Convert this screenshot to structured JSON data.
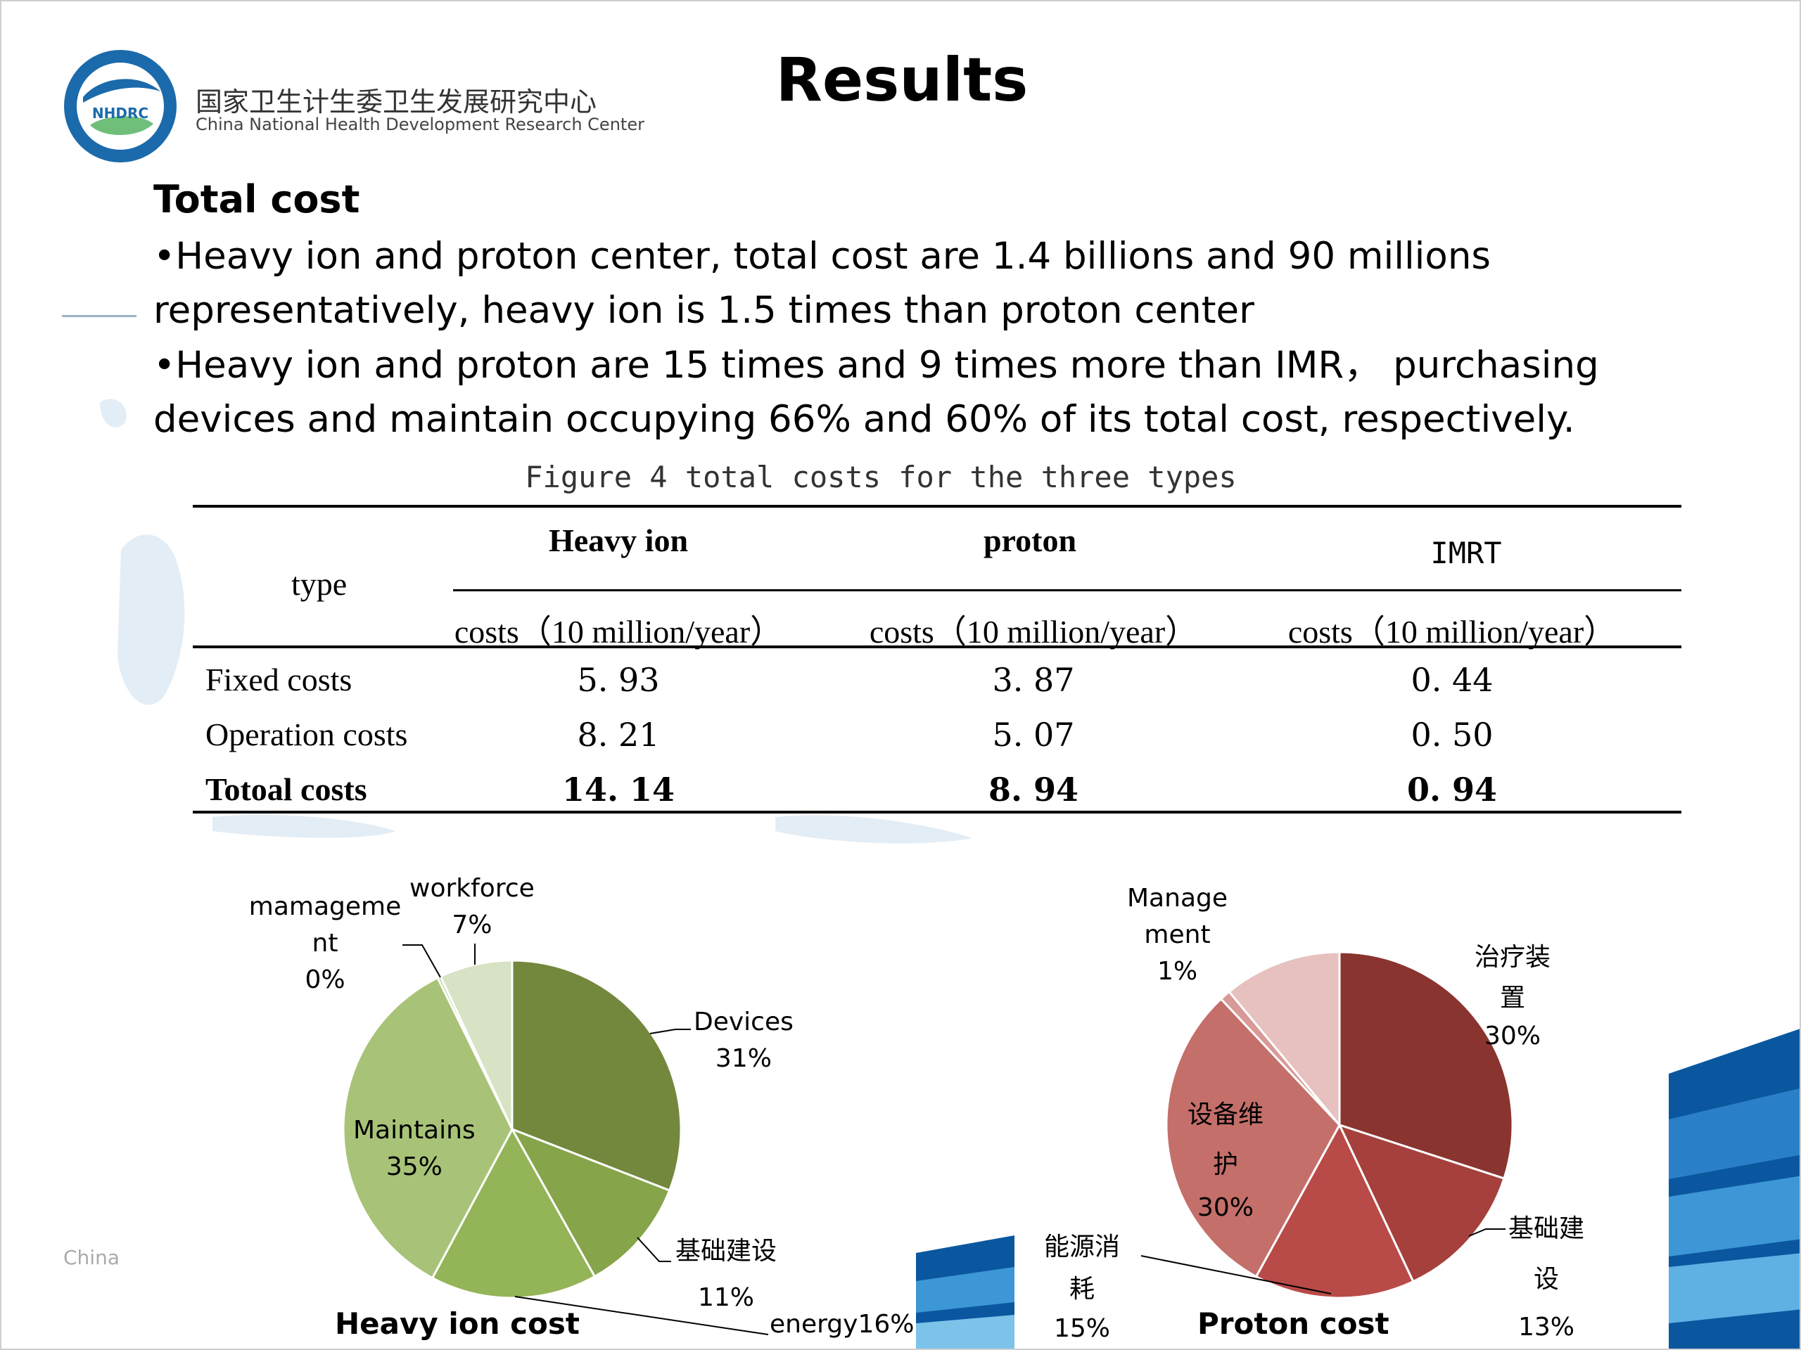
{
  "slide": {
    "title": "Results",
    "org_cn": "国家卫生计生委卫生发展研究中心",
    "org_en": "China National Health Development Research Center",
    "logo_text": "NHDRC",
    "footer_fragment": "China",
    "section_heading": "Total cost",
    "bullets": [
      "•Heavy ion and proton center, total cost are 1.4 billions and 90 millions representatively, heavy ion is 1.5 times than proton center",
      "•Heavy ion and proton are 15 times and 9 times more than IMR， purchasing devices and maintain occupying 66% and 60% of its total cost, respectively."
    ]
  },
  "table": {
    "caption": "Figure 4 total costs for the three types",
    "type_header": "type",
    "groups": [
      "Heavy ion",
      "proton",
      "IMRT"
    ],
    "sub_header": "costs（10 million/year）",
    "rows": [
      {
        "label": "Fixed costs",
        "values": [
          "5. 93",
          "3. 87",
          "0. 44"
        ],
        "bold": false
      },
      {
        "label": "Operation costs",
        "values": [
          "8. 21",
          "5. 07",
          "0. 50"
        ],
        "bold": false
      },
      {
        "label": "Totoal costs",
        "values": [
          "14. 14",
          "8. 94",
          "0. 94"
        ],
        "bold": true
      }
    ]
  },
  "colors": {
    "heavy": [
      "#73883c",
      "#86a44a",
      "#93b457",
      "#a8c378",
      "#b8ce94",
      "#d7e3c4"
    ],
    "proton": [
      "#8a3430",
      "#a5403c",
      "#b84b47",
      "#c46f6a",
      "#d89a97",
      "#e6c1c0"
    ],
    "logo_blue": "#1b6aab",
    "accent_blue": "#1063b0"
  },
  "chart_data": [
    {
      "type": "pie",
      "title": "Heavy ion cost",
      "slices": [
        {
          "label": "Devices",
          "pct_label": "31%",
          "value": 31
        },
        {
          "label": "基础建设",
          "pct_label": "11%",
          "value": 11
        },
        {
          "label": "energy",
          "pct_label": "16%",
          "value": 16
        },
        {
          "label": "Maintains",
          "pct_label": "35%",
          "value": 35
        },
        {
          "label": "mamageme nt",
          "pct_label": "0%",
          "value": 0.3
        },
        {
          "label": "workforce",
          "pct_label": "7%",
          "value": 7
        }
      ]
    },
    {
      "type": "pie",
      "title": "Proton cost",
      "slices": [
        {
          "label": "治疗装置",
          "pct_label": "30%",
          "value": 30
        },
        {
          "label": "基础建设",
          "pct_label": "13%",
          "value": 13
        },
        {
          "label": "能源消耗",
          "pct_label": "15%",
          "value": 15
        },
        {
          "label": "设备维护",
          "pct_label": "30%",
          "value": 30
        },
        {
          "label": "Management",
          "pct_label": "1%",
          "value": 1
        },
        {
          "label": "",
          "pct_label": "",
          "value": 11
        }
      ]
    }
  ],
  "labels": {
    "heavy": {
      "workforce": [
        "workforce",
        "7%"
      ],
      "management": [
        "mamageme",
        "nt",
        "0%"
      ],
      "devices": [
        "Devices",
        "31%"
      ],
      "maintains": [
        "Maintains",
        "35%"
      ],
      "infra": [
        "基础建设",
        "11%"
      ],
      "energy": "energy16%"
    },
    "proton": {
      "management": [
        "Manage",
        "ment",
        "1%"
      ],
      "device": [
        "治疗装",
        "置",
        "30%"
      ],
      "maintain": [
        "设备维",
        "护",
        "30%"
      ],
      "energy": [
        "能源消",
        "耗",
        "15%"
      ],
      "infra": [
        "基础建",
        "设",
        "13%"
      ]
    }
  }
}
